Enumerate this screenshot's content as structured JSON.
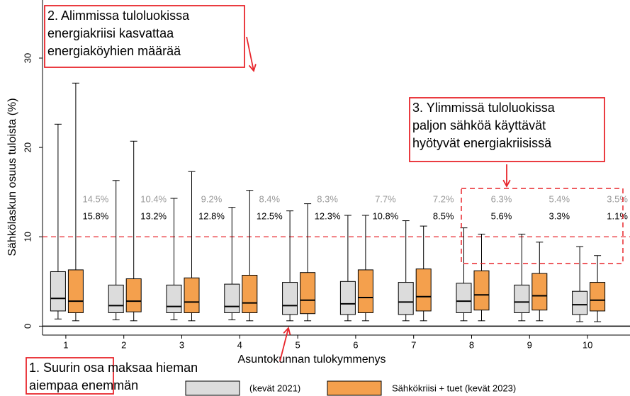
{
  "chart_data": {
    "type": "box",
    "ylabel": "Sähkölaskun osuus tuloista (%)",
    "xlabel": "Asuntokunnan tulokymmenys",
    "categories": [
      "1",
      "2",
      "3",
      "4",
      "5",
      "6",
      "7",
      "8",
      "9",
      "10"
    ],
    "ylim": [
      -1,
      36.5
    ],
    "yticks": [
      0,
      10,
      20,
      30
    ],
    "threshold": 10,
    "threshold_color": "#e8262c",
    "series": [
      {
        "name": "(kevät 2021)",
        "color": "#dcdcdc",
        "label_color": "#999999",
        "whisker_low": [
          0.8,
          0.7,
          0.7,
          0.7,
          0.6,
          0.6,
          0.6,
          0.6,
          0.6,
          0.5
        ],
        "q1": [
          1.7,
          1.5,
          1.5,
          1.5,
          1.3,
          1.3,
          1.3,
          1.5,
          1.5,
          1.3
        ],
        "median": [
          3.1,
          2.3,
          2.2,
          2.2,
          2.3,
          2.5,
          2.7,
          2.8,
          2.7,
          2.4
        ],
        "q3": [
          6.1,
          4.6,
          4.6,
          4.7,
          4.9,
          5.0,
          4.9,
          4.8,
          4.6,
          3.9
        ],
        "whisker_high": [
          22.6,
          16.3,
          14.3,
          13.3,
          12.9,
          12.4,
          11.8,
          11.0,
          10.3,
          8.9
        ],
        "above_threshold": [
          14.5,
          10.4,
          9.2,
          8.4,
          8.3,
          7.7,
          7.2,
          6.3,
          5.4,
          3.5
        ],
        "above_threshold_labels": [
          "14.5%",
          "10.4%",
          "9.2%",
          "8.4%",
          "8.3%",
          "7.7%",
          "7.2%",
          "6.3%",
          "5.4%",
          "3.5%"
        ]
      },
      {
        "name": "Sähkökriisi + tuet (kevät 2023)",
        "color": "#f4a04d",
        "label_color": "#000000",
        "whisker_low": [
          0.6,
          0.6,
          0.6,
          0.6,
          0.6,
          0.6,
          0.6,
          0.6,
          0.6,
          0.5
        ],
        "q1": [
          1.5,
          1.6,
          1.5,
          1.5,
          1.4,
          1.5,
          1.7,
          1.8,
          1.8,
          1.7
        ],
        "median": [
          2.8,
          2.8,
          2.7,
          2.6,
          2.9,
          3.2,
          3.3,
          3.5,
          3.4,
          2.9
        ],
        "q3": [
          6.3,
          5.3,
          5.4,
          5.7,
          6.0,
          6.3,
          6.4,
          6.2,
          5.9,
          4.9
        ],
        "whisker_high": [
          27.2,
          20.7,
          17.3,
          15.2,
          13.7,
          12.4,
          11.2,
          10.3,
          9.4,
          7.9
        ],
        "above_threshold": [
          15.8,
          13.2,
          12.8,
          12.5,
          12.3,
          10.8,
          8.5,
          5.6,
          3.3,
          1.1
        ],
        "above_threshold_labels": [
          "15.8%",
          "13.2%",
          "12.8%",
          "12.5%",
          "12.3%",
          "10.8%",
          "8.5%",
          "5.6%",
          "3.3%",
          "1.1%"
        ]
      }
    ],
    "annotations": [
      {
        "lines": [
          "1. Suurin osa maksaa hieman",
          "aiempaa enemmän"
        ]
      },
      {
        "lines": [
          "2. Alimmissa tuloluokissa",
          "energiakriisi kasvattaa",
          "energiaköyhien määrää"
        ]
      },
      {
        "lines": [
          "3. Ylimmissä tuloluokissa",
          "paljon sähköä käyttävät",
          "hyötyvät energiakriisissä"
        ]
      }
    ]
  }
}
